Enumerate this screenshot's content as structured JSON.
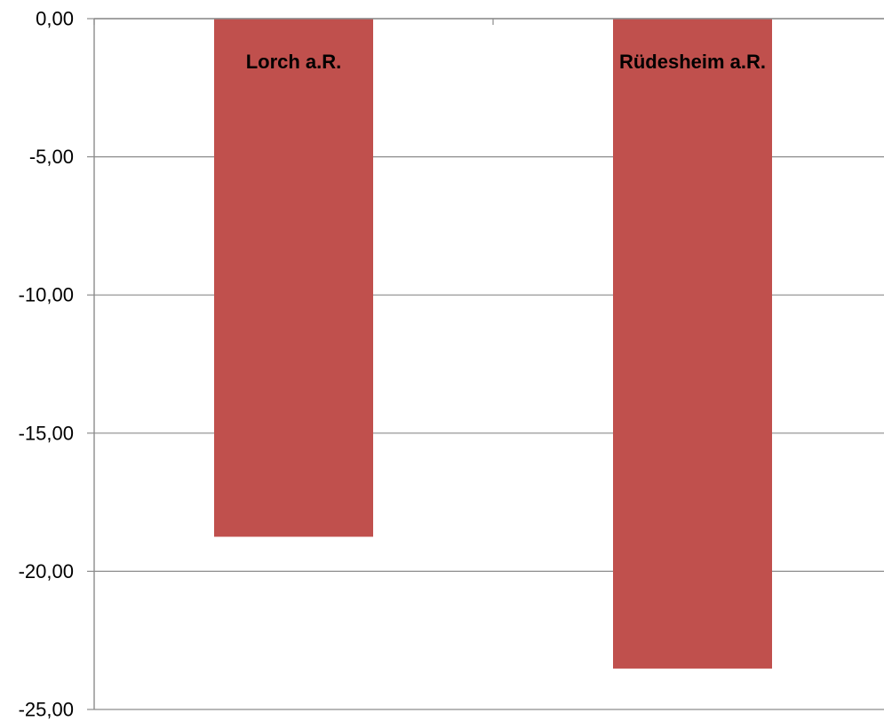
{
  "chart_data": {
    "type": "bar",
    "categories": [
      "Lorch a.R.",
      "Rüdesheim a.R."
    ],
    "values": [
      -18.75,
      -23.52
    ],
    "ylim": [
      -25,
      0
    ],
    "ytick_values": [
      0,
      -5,
      -10,
      -15,
      -20,
      -25
    ],
    "ytick_labels": [
      "0,00",
      "-5,00",
      "-10,00",
      "-15,00",
      "-20,00",
      "-25,00"
    ],
    "category_label_position": "top, under axis",
    "grid": true,
    "legend": "none",
    "colors": {
      "bar": "#c0504d",
      "grid": "#8c8c8c",
      "axis": "#8c8c8c"
    }
  }
}
